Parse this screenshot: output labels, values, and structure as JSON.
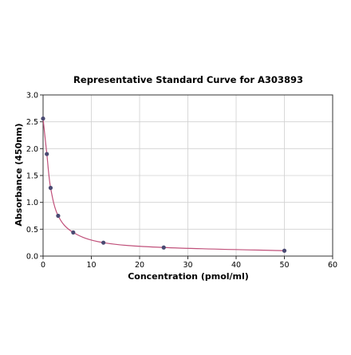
{
  "chart_data": {
    "type": "scatter",
    "title": "Representative Standard Curve for A303893",
    "xlabel": "Concentration (pmol/ml)",
    "ylabel": "Absorbance (450nm)",
    "xlim": [
      0,
      60
    ],
    "ylim": [
      0,
      3.0
    ],
    "x_ticks": [
      0,
      10,
      20,
      30,
      40,
      50,
      60
    ],
    "x_tick_labels": [
      "0",
      "10",
      "20",
      "30",
      "40",
      "50",
      "60"
    ],
    "y_ticks": [
      0,
      0.5,
      1.0,
      1.5,
      2.0,
      2.5,
      3.0
    ],
    "y_tick_labels": [
      "0.0",
      "0.5",
      "1.0",
      "1.5",
      "2.0",
      "2.5",
      "3.0"
    ],
    "grid": true,
    "legend": "none",
    "series": [
      {
        "x": [
          0,
          0.78,
          1.56,
          3.125,
          6.25,
          12.5,
          25,
          50
        ],
        "y": [
          2.56,
          1.9,
          1.27,
          0.75,
          0.44,
          0.25,
          0.16,
          0.1
        ],
        "marker_color": "#4a4a72",
        "line_color": "#c0507a",
        "fit": "smooth curve"
      }
    ]
  }
}
